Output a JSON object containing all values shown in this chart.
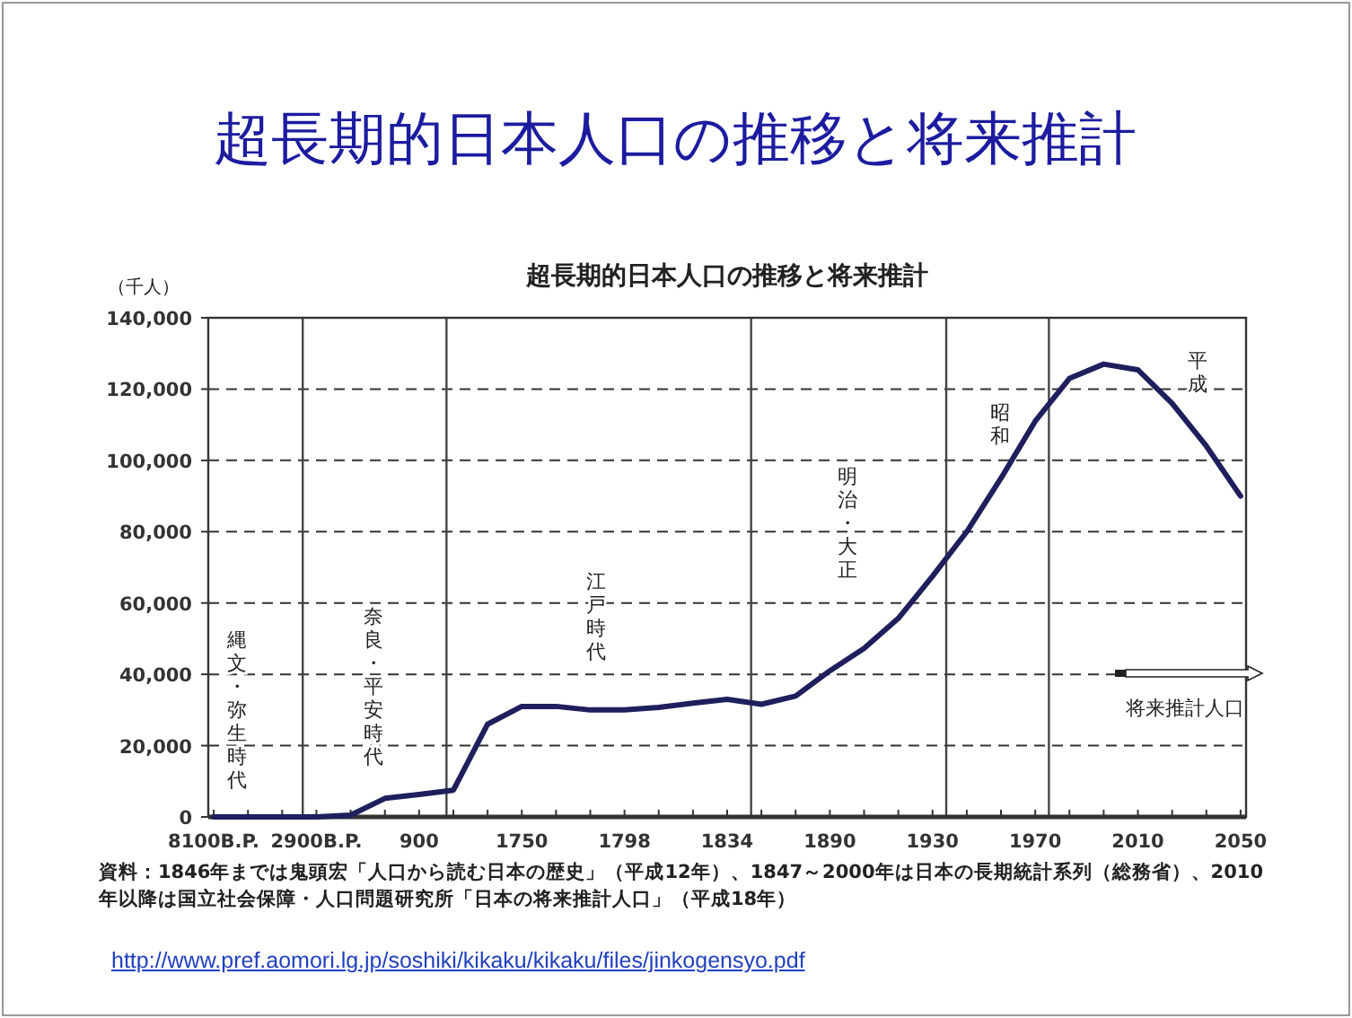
{
  "chart_data": {
    "type": "line",
    "title": "超長期的日本人口の推移と将来推計",
    "subtitle": "超長期的日本人口の推移と将来推計",
    "ylabel": "（千人）",
    "categories": [
      "8100B.P.",
      null,
      null,
      "2900B.P.",
      null,
      null,
      "900",
      null,
      null,
      "1750",
      null,
      null,
      "1798",
      null,
      null,
      "1834",
      null,
      null,
      "1890",
      null,
      null,
      "1930",
      null,
      null,
      "1970",
      null,
      null,
      "2010",
      null,
      null,
      "2050"
    ],
    "ylim": [
      0,
      140000
    ],
    "yticks": [
      {
        "value": 0,
        "label": "0"
      },
      {
        "value": 20000,
        "label": "20,000"
      },
      {
        "value": 40000,
        "label": "40,000"
      },
      {
        "value": 60000,
        "label": "60,000"
      },
      {
        "value": 80000,
        "label": "80,000"
      },
      {
        "value": 100000,
        "label": "100,000"
      },
      {
        "value": 120000,
        "label": "120,000"
      },
      {
        "value": 140000,
        "label": "140,000"
      }
    ],
    "grid": "y",
    "series": [
      {
        "color": "#1f1f5e",
        "values": [
          0,
          0,
          0,
          0,
          500,
          5200,
          6300,
          7500,
          26000,
          31000,
          31000,
          30000,
          30000,
          30700,
          31900,
          33000,
          31600,
          33900,
          41000,
          47300,
          55700,
          67500,
          80000,
          95000,
          111000,
          123000,
          127000,
          125400,
          116000,
          104000,
          90000
        ]
      }
    ],
    "annotations": [
      "縄文・弥生時代",
      "奈良・平安時代",
      "江戸時代",
      "明治・大正",
      "昭和",
      "平成",
      "将来推計人口",
      "資料：1846年までは鬼頭宏「人口から読む日本の歴史」（平成12年）、1847～2000年は日本の長期統計系列（総務省）、2010年以降は国立社会保障・人口問題研究所「日本の将来推計人口」（平成18年）",
      "http://www.pref.aomori.lg.jp/soshiki/kikaku/kikaku/files/jinkogensyo.pdf"
    ]
  }
}
